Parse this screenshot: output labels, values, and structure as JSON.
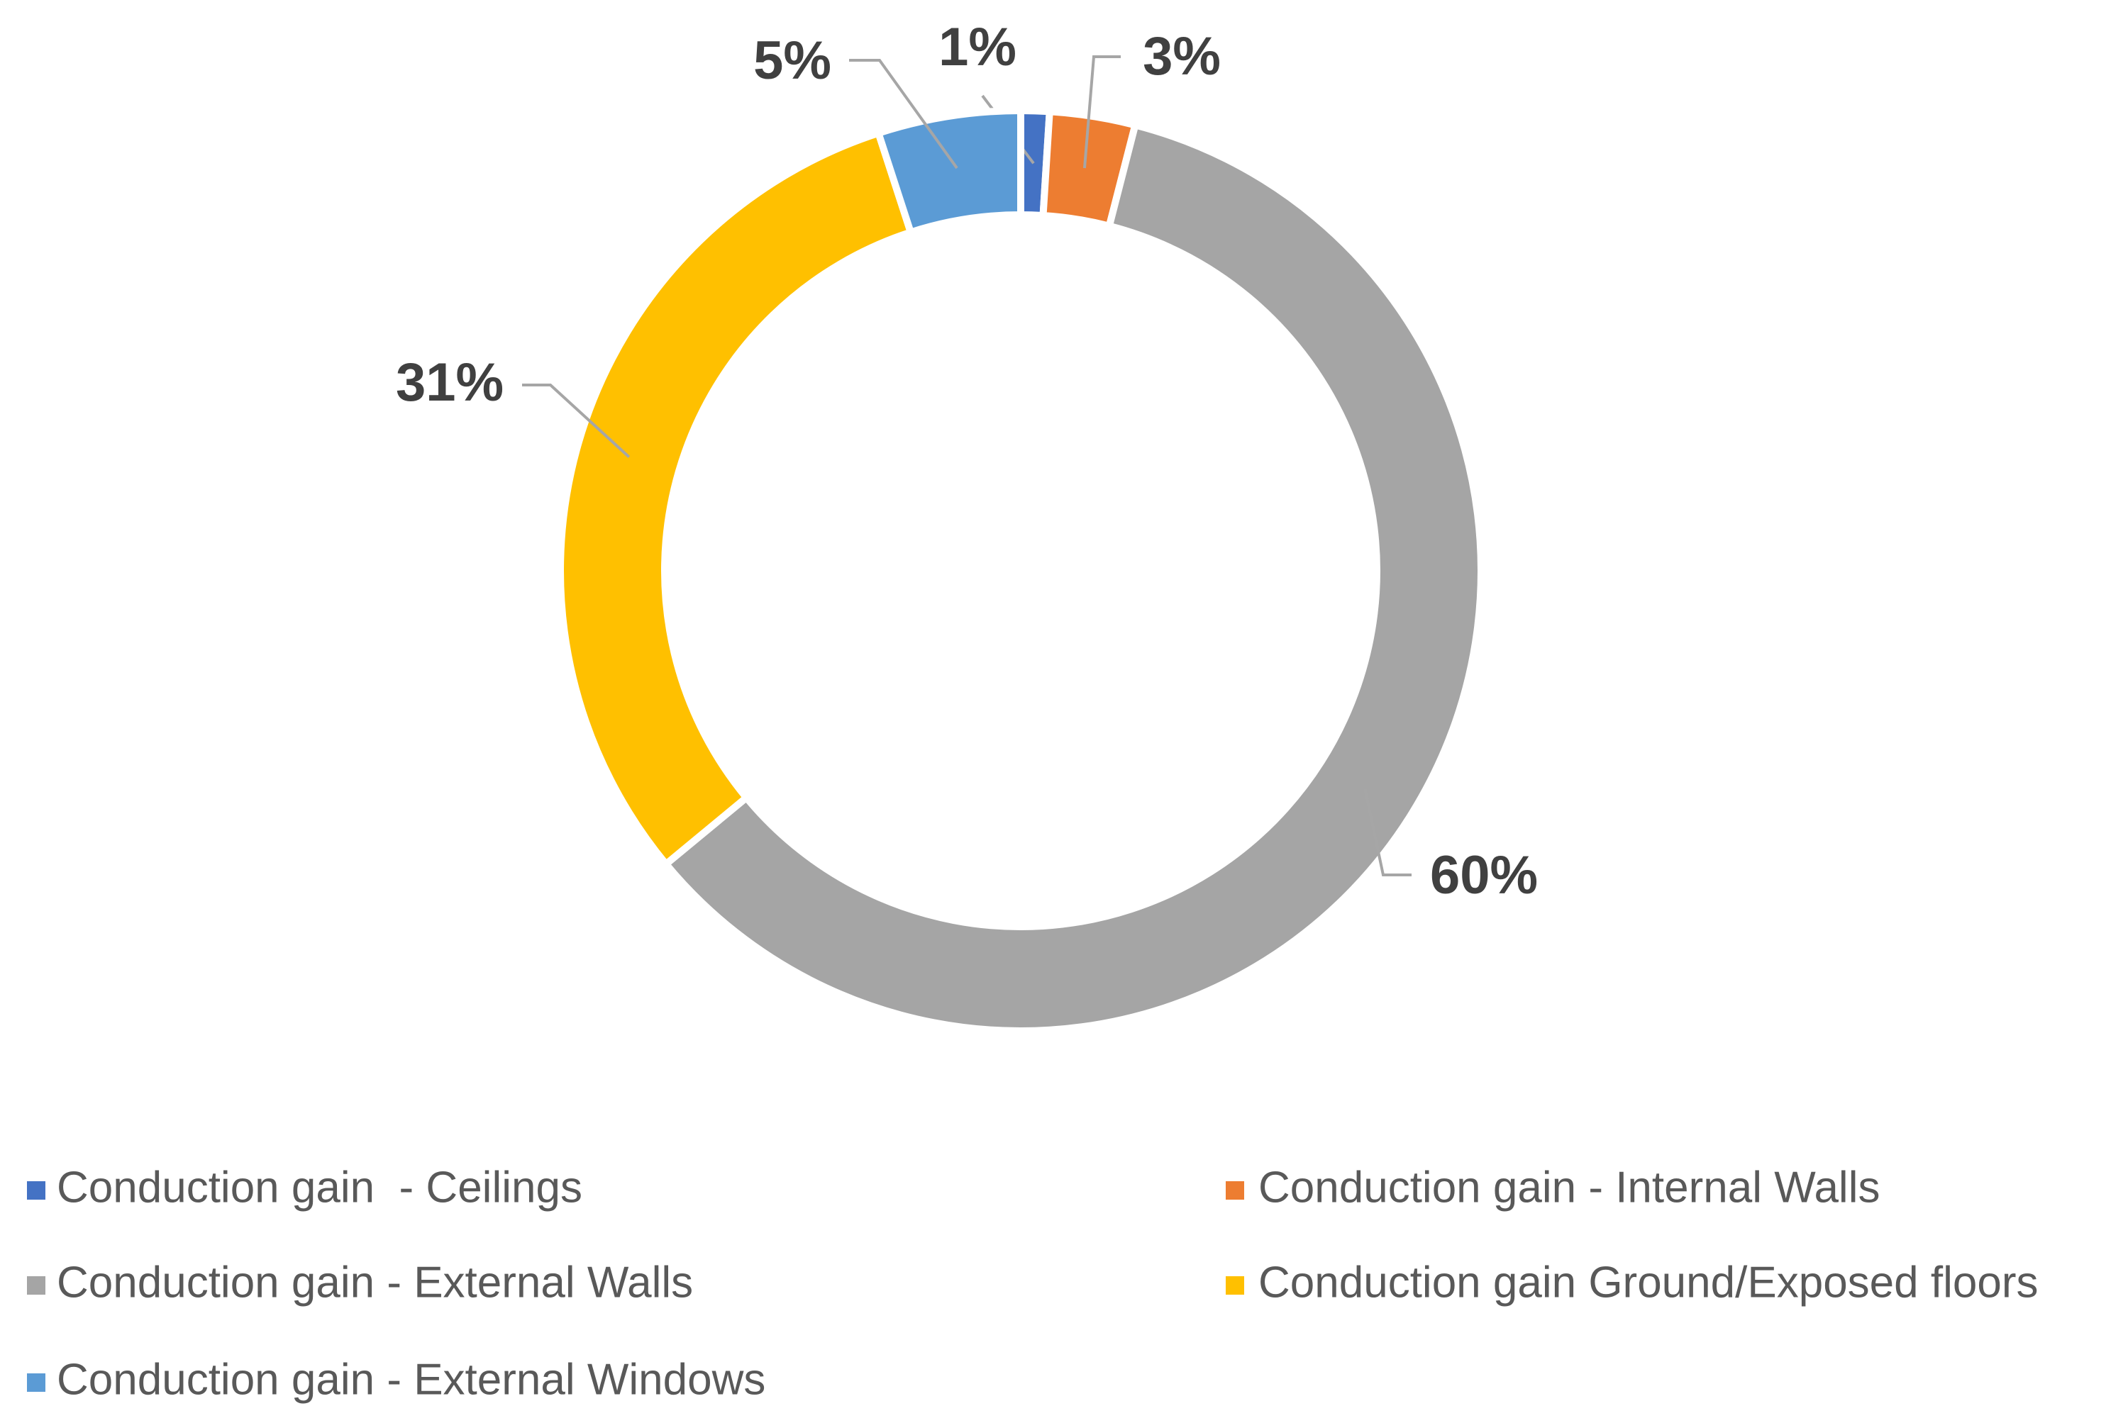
{
  "chart_data": {
    "type": "donut",
    "categories": [
      "Conduction gain  - Ceilings",
      "Conduction gain - Internal Walls",
      "Conduction gain - External Walls",
      "Conduction gain Ground/Exposed floors",
      "Conduction gain - External Windows"
    ],
    "values": [
      1,
      3,
      60,
      31,
      5
    ],
    "value_labels": [
      "1%",
      "3%",
      "60%",
      "31%",
      "5%"
    ],
    "colors": [
      "#4472c4",
      "#ed7d31",
      "#a5a5a5",
      "#ffc000",
      "#5b9bd5"
    ],
    "legend": "bottom"
  }
}
